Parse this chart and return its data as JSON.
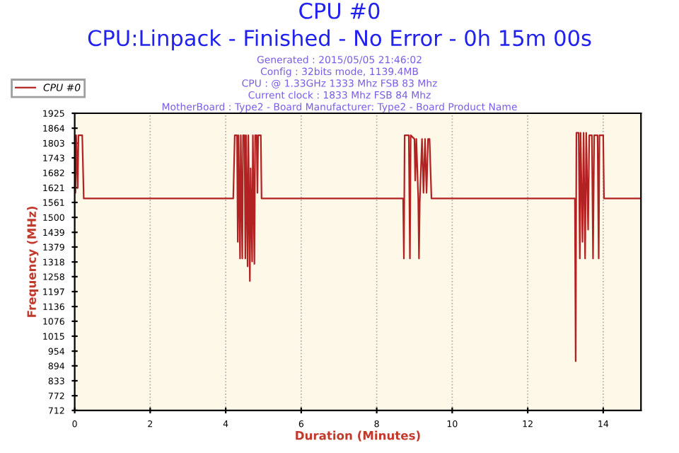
{
  "chart_data": {
    "type": "line",
    "title": "CPU #0",
    "subtitle": "CPU:Linpack - Finished - No Error - 0h 15m 00s",
    "annotations": [
      "Generated : 2015/05/05 21:46:02",
      "Config : 32bits mode, 1139.4MB",
      "CPU : @ 1.33GHz 1333 Mhz FSB 83 Mhz",
      "Current clock : 1833 Mhz FSB 84 Mhz",
      "MotherBoard : Type2 - Board Manufacturer: Type2 - Board Product Name"
    ],
    "xlabel": "Duration (Minutes)",
    "ylabel": "Frequency (MHz)",
    "series": [
      {
        "name": "CPU #0",
        "color": "#b22222",
        "x": [
          0,
          0.02,
          0.04,
          0.08,
          0.1,
          0.2,
          0.24,
          4.2,
          4.24,
          4.3,
          4.32,
          4.34,
          4.38,
          4.4,
          4.44,
          4.46,
          4.5,
          4.52,
          4.54,
          4.58,
          4.6,
          4.64,
          4.66,
          4.7,
          4.72,
          4.76,
          4.78,
          4.82,
          4.84,
          4.86,
          4.93,
          4.95,
          8.7,
          8.72,
          8.74,
          8.85,
          8.88,
          8.9,
          9.0,
          9.02,
          9.05,
          9.1,
          9.12,
          9.14,
          9.2,
          9.24,
          9.28,
          9.32,
          9.36,
          9.4,
          9.45,
          13.25,
          13.27,
          13.29,
          13.35,
          13.38,
          13.4,
          13.45,
          13.48,
          13.52,
          13.55,
          13.6,
          13.63,
          13.7,
          13.73,
          13.76,
          13.85,
          13.88,
          13.9,
          14.0,
          14.02,
          15
        ],
        "values": [
          1835,
          1600,
          1835,
          1620,
          1835,
          1835,
          1577,
          1577,
          1835,
          1835,
          1400,
          1835,
          1332,
          1835,
          1332,
          1835,
          1835,
          1332,
          1835,
          1300,
          1835,
          1240,
          1700,
          1320,
          1835,
          1310,
          1835,
          1835,
          1600,
          1835,
          1835,
          1577,
          1577,
          1332,
          1835,
          1835,
          1332,
          1835,
          1820,
          1650,
          1820,
          1580,
          1332,
          1560,
          1820,
          1600,
          1820,
          1600,
          1820,
          1820,
          1577,
          1577,
          913,
          1845,
          1845,
          1332,
          1845,
          1400,
          1845,
          1332,
          1845,
          1450,
          1835,
          1835,
          1332,
          1835,
          1835,
          1332,
          1835,
          1835,
          1577,
          1577
        ]
      }
    ],
    "xlim": [
      0,
      15
    ],
    "xticks": [
      0,
      2,
      4,
      6,
      8,
      10,
      12,
      14
    ],
    "ylim": [
      712,
      1925
    ],
    "yticks": [
      712,
      772,
      833,
      894,
      954,
      1015,
      1076,
      1136,
      1197,
      1258,
      1318,
      1379,
      1439,
      1500,
      1561,
      1621,
      1682,
      1743,
      1803,
      1864,
      1925
    ],
    "grid": "x",
    "legend": "top left",
    "marker": "none",
    "line_style": "solid"
  }
}
